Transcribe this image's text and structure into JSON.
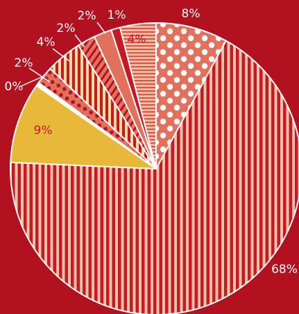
{
  "chart_data": {
    "type": "pie",
    "slices": [
      {
        "label": "8%",
        "value": 8,
        "fill": "#e0715d",
        "pattern": "dots",
        "label_color": "#ffffff"
      },
      {
        "label": "68%",
        "value": 68,
        "fill": "#f4c0a4",
        "pattern": "vertical-stripes",
        "label_color": "#ffffff"
      },
      {
        "label": "9%",
        "value": 9,
        "fill": "#e8b83a",
        "pattern": "solid",
        "label_color": "#c41a26"
      },
      {
        "label": "0%",
        "value": 0.4,
        "fill": "#ffffff",
        "pattern": "solid",
        "label_color": "#ffffff"
      },
      {
        "label": "2%",
        "value": 2,
        "fill": "#e0715d",
        "pattern": "diamonds",
        "label_color": "#ffffff"
      },
      {
        "label": "4%",
        "value": 4,
        "fill": "#f7d99a",
        "pattern": "vertical-stripes",
        "label_color": "#ffffff"
      },
      {
        "label": "2%",
        "value": 2,
        "fill": "#e0715d",
        "pattern": "diagonal-stripes",
        "label_color": "#ffffff"
      },
      {
        "label": "2%",
        "value": 2,
        "fill": "#e0715d",
        "pattern": "solid",
        "label_color": "#ffffff"
      },
      {
        "label": "1%",
        "value": 1,
        "fill": "#c41a26",
        "pattern": "solid",
        "label_color": "#ffffff"
      },
      {
        "label": "4%",
        "value": 4,
        "fill": "#f4c0a4",
        "pattern": "horizontal-stripes",
        "label_color": "#c41a26"
      }
    ],
    "background": "#b2111f",
    "stripe_color": "#c41a26"
  }
}
